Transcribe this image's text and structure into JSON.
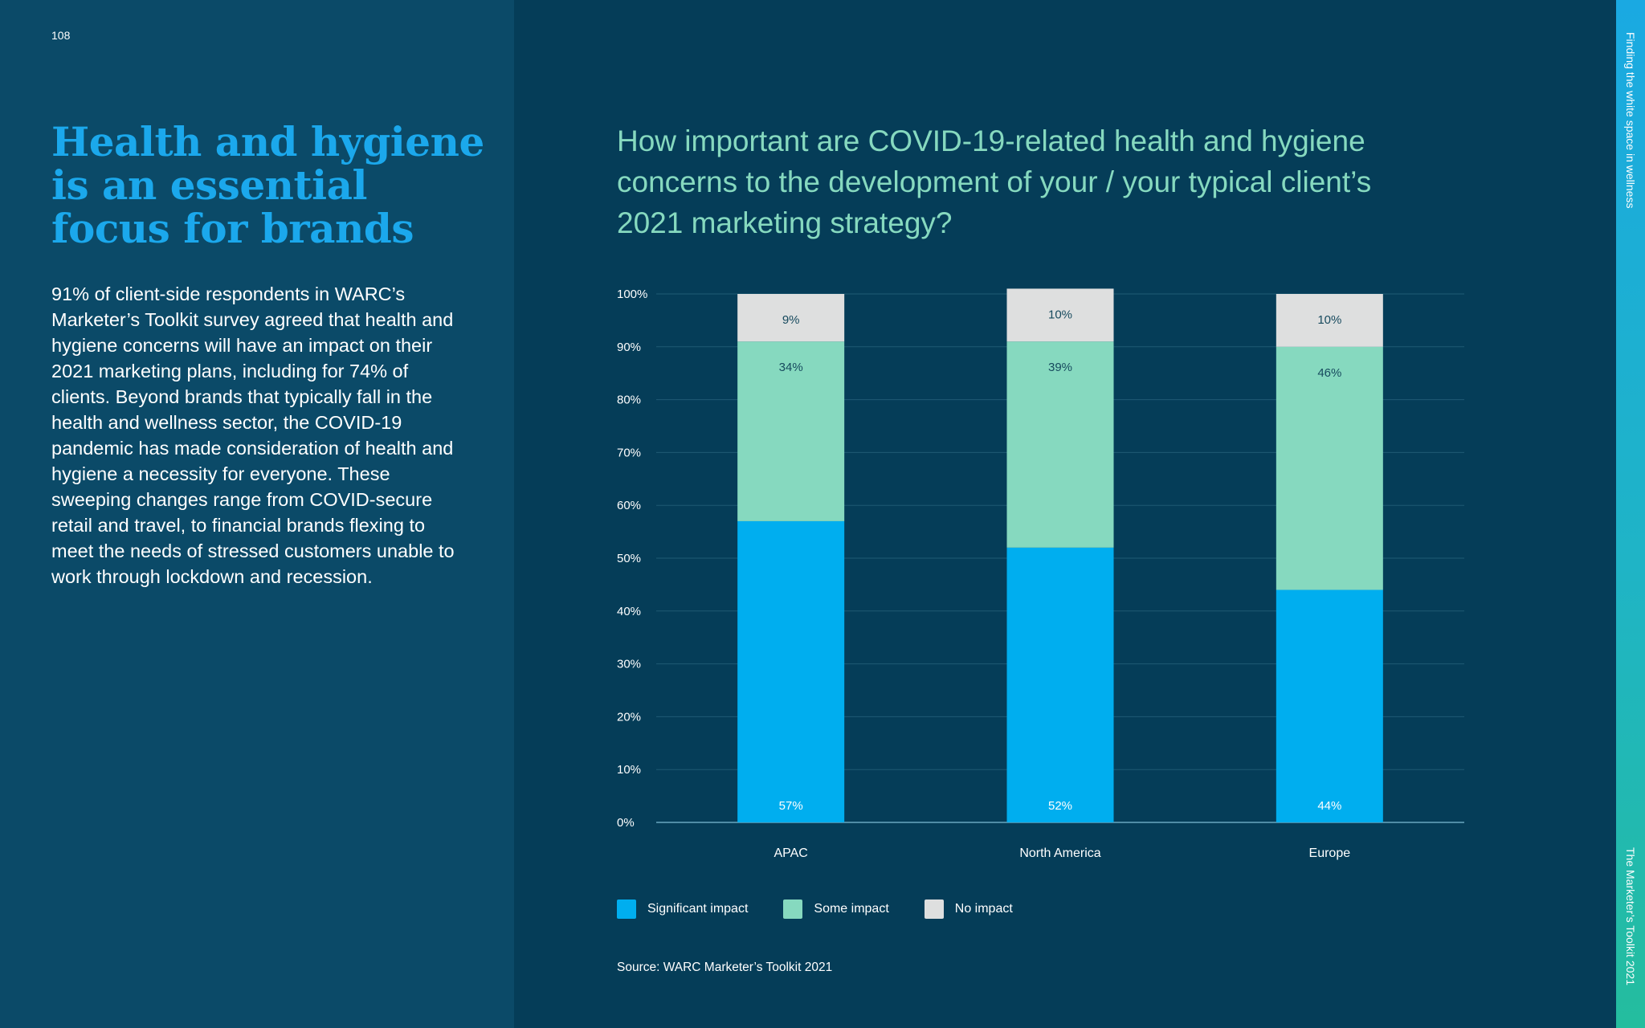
{
  "page_number": "108",
  "headline": "Health and hygiene is an essential focus for brands",
  "body": "91% of client-side respondents in WARC’s Marketer’s Toolkit survey agreed that health and hygiene concerns will have an impact on their 2021 marketing plans, including for 74% of clients. Beyond brands that typically fall in the health and wellness sector, the COVID-19 pandemic has made consideration of health and hygiene a necessity for everyone. These sweeping changes range from COVID-secure retail and travel, to financial brands flexing to meet the needs of stressed customers unable to work through lockdown and recession.",
  "side_labels": {
    "top": "Finding the white space in wellness",
    "bottom": "The Marketer’s Toolkit 2021"
  },
  "chart_data": {
    "type": "bar",
    "stacked": true,
    "title": "How important are COVID-19-related health and hygiene concerns to the development of your / your typical client’s 2021 marketing strategy?",
    "categories": [
      "APAC",
      "North America",
      "Europe"
    ],
    "series": [
      {
        "name": "Significant impact",
        "values": [
          57,
          52,
          44
        ],
        "labels": [
          "57%",
          "52%",
          "44%"
        ],
        "color": "#00aeef",
        "label_color": "#ffffff"
      },
      {
        "name": "Some impact",
        "values": [
          34,
          39,
          46
        ],
        "labels": [
          "34%",
          "39%",
          "46%"
        ],
        "color": "#86d9bf",
        "label_color": "#174a5e"
      },
      {
        "name": "No impact",
        "values": [
          9,
          10,
          10
        ],
        "labels": [
          "9%",
          "10%",
          "10%"
        ],
        "color": "#dedfdf",
        "label_color": "#174a5e"
      }
    ],
    "ylim": [
      0,
      100
    ],
    "yticks": [
      "0%",
      "10%",
      "20%",
      "30%",
      "40%",
      "50%",
      "60%",
      "70%",
      "80%",
      "90%",
      "100%"
    ],
    "xlabel": "",
    "ylabel": "",
    "grid": true,
    "legend_position": "bottom-left",
    "source": "Source: WARC Marketer’s Toolkit 2021"
  }
}
